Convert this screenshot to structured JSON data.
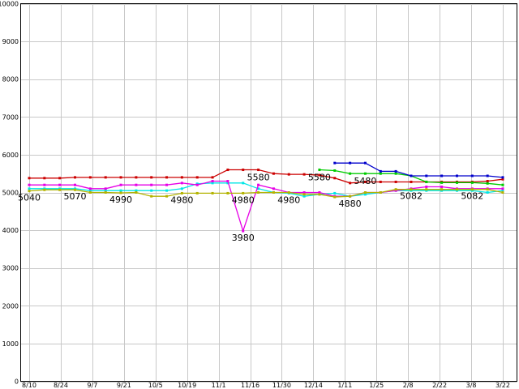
{
  "chart_data": {
    "type": "line",
    "ylim": [
      0,
      10000
    ],
    "yticks": [
      0,
      1000,
      2000,
      3000,
      4000,
      5000,
      6000,
      7000,
      8000,
      9000,
      10000
    ],
    "x_tick_labels": [
      "8/10",
      "8/24",
      "9/7",
      "9/21",
      "10/5",
      "10/19",
      "11/1",
      "11/16",
      "11/30",
      "12/14",
      "1/11",
      "1/25",
      "2/8",
      "2/22",
      "3/8",
      "3/22"
    ],
    "grid": true,
    "legend": "none",
    "series": [
      {
        "color": "#cc0000",
        "values": [
          5380,
          5380,
          5380,
          5400,
          5400,
          5400,
          5400,
          5400,
          5400,
          5400,
          5400,
          5400,
          5400,
          5600,
          5600,
          5600,
          5500,
          5480,
          5480,
          5460,
          5380,
          5250,
          5280,
          5280,
          5280,
          5280,
          5280,
          5280,
          5280,
          5280,
          5300,
          5350
        ]
      },
      {
        "color": "#00cc00",
        "values": [
          null,
          null,
          null,
          null,
          null,
          null,
          null,
          null,
          null,
          null,
          null,
          null,
          null,
          null,
          null,
          null,
          null,
          null,
          null,
          5600,
          5580,
          5500,
          5500,
          5500,
          5500,
          5440,
          5280,
          5260,
          5260,
          5260,
          5240,
          5200
        ]
      },
      {
        "color": "#0000cc",
        "values": [
          null,
          null,
          null,
          null,
          null,
          null,
          null,
          null,
          null,
          null,
          null,
          null,
          null,
          null,
          null,
          null,
          null,
          null,
          null,
          null,
          5780,
          5780,
          5780,
          5560,
          5560,
          5440,
          5440,
          5440,
          5440,
          5440,
          5440,
          5400
        ]
      },
      {
        "color": "#00e6e6",
        "values": [
          5100,
          5100,
          5100,
          5100,
          5050,
          5050,
          5050,
          5050,
          5050,
          5050,
          5100,
          5230,
          5250,
          5250,
          5250,
          5100,
          5000,
          4980,
          4900,
          4950,
          4980,
          4900,
          4950,
          5000,
          5050,
          5050,
          5050,
          5050,
          5050,
          5050,
          5000,
          5050
        ]
      },
      {
        "color": "#e600e6",
        "values": [
          5200,
          5200,
          5200,
          5200,
          5100,
          5100,
          5200,
          5200,
          5200,
          5200,
          5250,
          5200,
          5300,
          5300,
          3980,
          5200,
          5100,
          5000,
          5000,
          5000,
          4900,
          4900,
          5000,
          5000,
          5050,
          5100,
          5150,
          5150,
          5100,
          5100,
          5100,
          5100
        ]
      },
      {
        "color": "#b3b300",
        "values": [
          5040,
          5070,
          5070,
          5070,
          5000,
          5000,
          4990,
          5000,
          4900,
          4900,
          4980,
          4980,
          4980,
          4980,
          4980,
          5000,
          5000,
          5000,
          4950,
          4950,
          4880,
          4900,
          5000,
          5000,
          5082,
          5082,
          5082,
          5082,
          5082,
          5082,
          5082,
          5000
        ]
      }
    ],
    "annotations": [
      {
        "text": "5040",
        "x_index": 0,
        "y": 5040
      },
      {
        "text": "5070",
        "x_index": 3,
        "y": 5070
      },
      {
        "text": "4990",
        "x_index": 6,
        "y": 4990
      },
      {
        "text": "4980",
        "x_index": 10,
        "y": 4980
      },
      {
        "text": "4980",
        "x_index": 14,
        "y": 4980
      },
      {
        "text": "3980",
        "x_index": 14,
        "y": 3980
      },
      {
        "text": "5580",
        "x_index": 15,
        "y": 5580
      },
      {
        "text": "4980",
        "x_index": 17,
        "y": 4980
      },
      {
        "text": "5580",
        "x_index": 19,
        "y": 5580
      },
      {
        "text": "5480",
        "x_index": 22,
        "y": 5480
      },
      {
        "text": "4880",
        "x_index": 21,
        "y": 4880
      },
      {
        "text": "5082",
        "x_index": 25,
        "y": 5082
      },
      {
        "text": "5082",
        "x_index": 29,
        "y": 5082
      }
    ]
  }
}
